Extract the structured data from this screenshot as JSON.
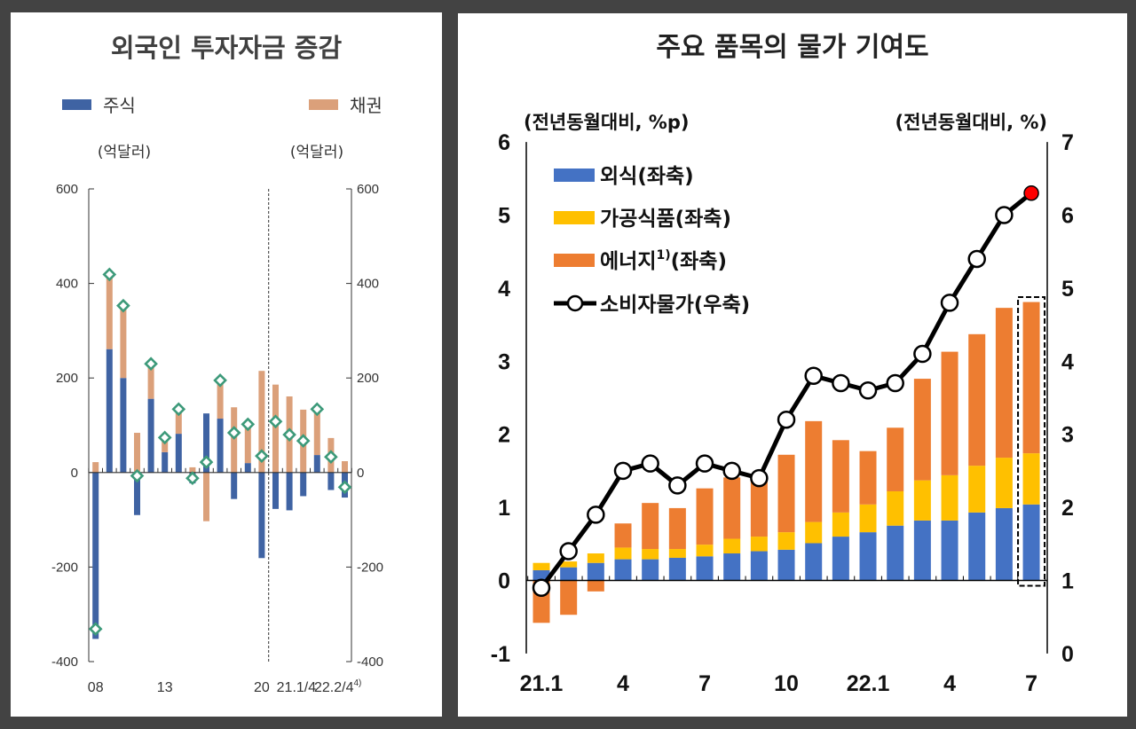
{
  "colors": {
    "background": "#434343",
    "stock": "#3f63a3",
    "bond": "#dba07a",
    "net_marker": "#3d9a7a",
    "dining": "#4472c4",
    "processed_food": "#ffc000",
    "energy": "#ed7d31",
    "cpi_line": "#000000",
    "cpi_latest": "#ff0000"
  },
  "chart_data": [
    {
      "type": "bar",
      "title": "외국인 투자자금 증감",
      "stacked": true,
      "ylabel_left": "(억달러)",
      "ylabel_right": "(억달러)",
      "ylim": [
        -400,
        600
      ],
      "yticks": [
        -400,
        -200,
        0,
        200,
        400,
        600
      ],
      "grid": false,
      "legend_placement": "top",
      "categories": [
        "08",
        "09",
        "10",
        "11",
        "12",
        "13",
        "14",
        "15",
        "16",
        "17",
        "18",
        "19",
        "20",
        "21.1/4",
        "21.2/4",
        "21.3/4",
        "21.4/4",
        "22.1/4",
        "22.2/4"
      ],
      "xtick_labels": [
        {
          "index": 0,
          "label": "08"
        },
        {
          "index": 5,
          "label": "13"
        },
        {
          "index": 12,
          "label": "20"
        },
        {
          "index": 14.5,
          "label": "21.1/4"
        },
        {
          "index": 17.5,
          "label": "22.2/4",
          "superscript": "4)"
        }
      ],
      "divider_after_index": 12,
      "series": [
        {
          "name": "주식",
          "color": "#3f63a3",
          "values": [
            -352,
            261,
            200,
            -90,
            156,
            43,
            82,
            -23,
            125,
            114,
            -56,
            20,
            -181,
            -77,
            -80,
            -50,
            37,
            -37,
            -53
          ]
        },
        {
          "name": "채권",
          "color": "#dba07a",
          "values": [
            22,
            158,
            153,
            84,
            74,
            31,
            52,
            11,
            -103,
            81,
            138,
            82,
            215,
            186,
            161,
            133,
            97,
            73,
            24
          ]
        }
      ],
      "net_markers": {
        "marker": "diamond",
        "color": "#3d9a7a",
        "values": [
          -331,
          419,
          353,
          -7,
          230,
          74,
          134,
          -12,
          22,
          195,
          84,
          102,
          35,
          108,
          80,
          67,
          134,
          33,
          -31
        ]
      }
    },
    {
      "type": "bar",
      "title": "주요 품목의 물가 기여도",
      "stacked": true,
      "ylabel_left": "(전년동월대비, %p)",
      "ylabel_right": "(전년동월대비, %)",
      "ylim": [
        -1,
        6
      ],
      "yticks": [
        -1,
        0,
        1,
        2,
        3,
        4,
        5,
        6
      ],
      "ylim_right": [
        0,
        7
      ],
      "yticks_right": [
        0,
        1,
        2,
        3,
        4,
        5,
        6,
        7
      ],
      "grid": false,
      "legend_placement": "top-left",
      "categories": [
        "21.1",
        "2",
        "3",
        "4",
        "5",
        "6",
        "7",
        "8",
        "9",
        "10",
        "11",
        "12",
        "22.1",
        "2",
        "3",
        "4",
        "5",
        "6",
        "7"
      ],
      "xtick_labels": [
        {
          "index": 0,
          "label": "21.1"
        },
        {
          "index": 3,
          "label": "4"
        },
        {
          "index": 6,
          "label": "7"
        },
        {
          "index": 9,
          "label": "10"
        },
        {
          "index": 12,
          "label": "22.1"
        },
        {
          "index": 15,
          "label": "4"
        },
        {
          "index": 18,
          "label": "7"
        }
      ],
      "highlight_index": 18,
      "series": [
        {
          "name": "외식(좌축)",
          "color": "#4472c4",
          "values": [
            0.14,
            0.18,
            0.24,
            0.29,
            0.29,
            0.31,
            0.33,
            0.37,
            0.4,
            0.42,
            0.51,
            0.6,
            0.66,
            0.75,
            0.82,
            0.82,
            0.93,
            0.99,
            1.04
          ]
        },
        {
          "name": "가공식품(좌축)",
          "color": "#ffc000",
          "values": [
            0.1,
            0.08,
            0.13,
            0.16,
            0.14,
            0.12,
            0.16,
            0.2,
            0.2,
            0.24,
            0.29,
            0.33,
            0.38,
            0.47,
            0.55,
            0.62,
            0.64,
            0.69,
            0.7
          ]
        },
        {
          "name": "에너지",
          "name_superscript": "1)",
          "name_suffix": "(좌축)",
          "color": "#ed7d31",
          "values": [
            -0.58,
            -0.47,
            -0.15,
            0.33,
            0.63,
            0.56,
            0.77,
            0.84,
            0.8,
            1.06,
            1.38,
            0.99,
            0.73,
            0.87,
            1.39,
            1.69,
            1.8,
            2.05,
            2.07
          ]
        },
        {
          "name": "소비자물가(우축)",
          "type": "line",
          "axis": "right",
          "color": "#000000",
          "values": [
            0.9,
            1.4,
            1.9,
            2.5,
            2.6,
            2.3,
            2.6,
            2.5,
            2.4,
            3.2,
            3.8,
            3.7,
            3.6,
            3.7,
            4.1,
            4.8,
            5.4,
            6.0,
            6.3
          ]
        }
      ]
    }
  ]
}
